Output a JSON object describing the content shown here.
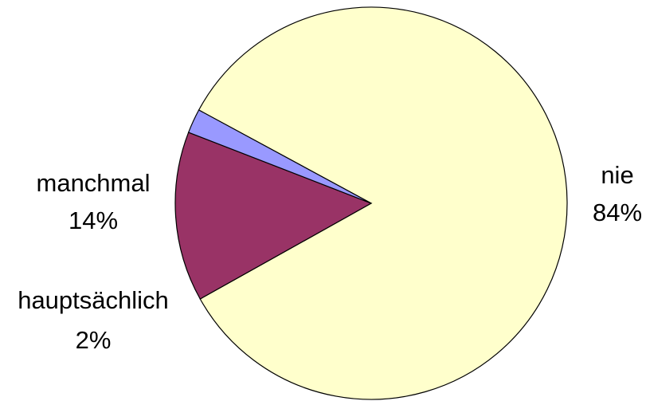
{
  "chart_data": {
    "type": "pie",
    "slices": [
      {
        "label": "nie",
        "value": 84,
        "value_label": "84%",
        "color": "#FFFFCC"
      },
      {
        "label": "manchmal",
        "value": 14,
        "value_label": "14%",
        "color": "#993366"
      },
      {
        "label": "hauptsächlich",
        "value": 2,
        "value_label": "2%",
        "color": "#9999FF"
      }
    ],
    "legend": "none",
    "data_labels": "category and percent outside slices"
  }
}
